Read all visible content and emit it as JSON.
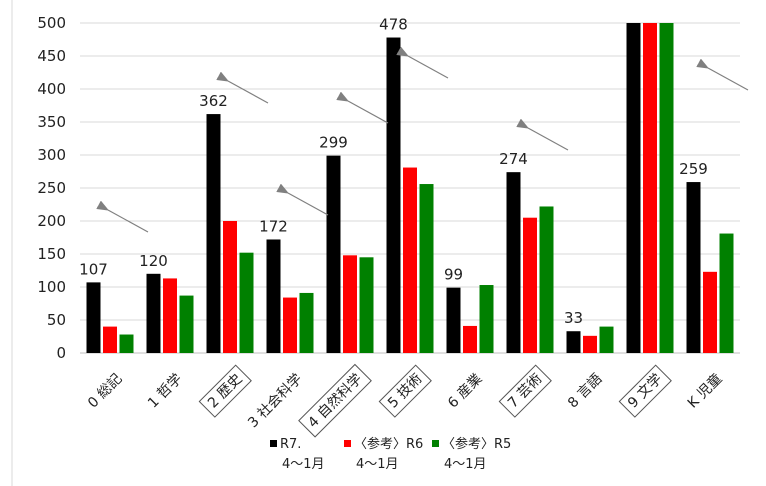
{
  "chart_data": {
    "type": "bar",
    "categories": [
      "0 総記",
      "1 哲学",
      "2 歴史",
      "3 社会科学",
      "4 自然科学",
      "5 技術",
      "6 産業",
      "7 芸術",
      "8 言語",
      "9 文学",
      "K 児童"
    ],
    "boxed_categories": [
      "2 歴史",
      "4 自然科学",
      "5 技術",
      "7 芸術",
      "9 文学"
    ],
    "series": [
      {
        "name": "R7.\n4～1月",
        "color": "#000000",
        "values": [
          107,
          120,
          362,
          172,
          299,
          478,
          99,
          274,
          33,
          500,
          259
        ],
        "labels": [
          "107",
          "120",
          "362",
          "172",
          "299",
          "478",
          "99",
          "274",
          "33",
          "",
          "259"
        ]
      },
      {
        "name": "〈参考〉R6\n4～1月",
        "color": "#ff0000",
        "values": [
          40,
          113,
          200,
          84,
          148,
          281,
          41,
          205,
          26,
          500,
          123
        ]
      },
      {
        "name": "〈参考〉R5\n4～1月",
        "color": "#008000",
        "values": [
          28,
          87,
          152,
          91,
          145,
          256,
          103,
          222,
          40,
          500,
          181
        ]
      }
    ],
    "ylim": [
      0,
      500
    ],
    "yticks": [
      0,
      50,
      100,
      150,
      200,
      250,
      300,
      350,
      400,
      450,
      500
    ],
    "grid": true,
    "legend_position": "bottom",
    "arrow_categories": [
      "0 総記",
      "2 歴史",
      "3 社会科学",
      "4 自然科学",
      "5 技術",
      "7 芸術",
      "K 児童"
    ],
    "arrow_color": "#808080"
  }
}
